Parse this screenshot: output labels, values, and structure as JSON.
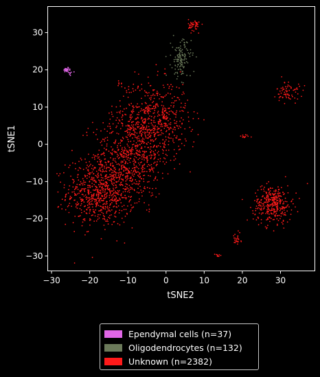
{
  "chart_data": {
    "type": "scatter",
    "xlabel": "tSNE2",
    "ylabel": "tSNE1",
    "xlim": [
      -31,
      39
    ],
    "ylim": [
      -34,
      37
    ],
    "xticks": [
      -30,
      -20,
      -10,
      0,
      10,
      20,
      30
    ],
    "yticks": [
      -30,
      -20,
      -10,
      0,
      10,
      20,
      30
    ],
    "grid": false,
    "legend_position": "bottom-center",
    "series": [
      {
        "name": "Ependymal cells (n=37)",
        "color": "#e066e6",
        "count": 37,
        "clusters": [
          {
            "cx": -26,
            "cy": 20,
            "sx": 0.5,
            "sy": 0.3,
            "n": 28
          },
          {
            "cx": -25,
            "cy": 19,
            "sx": 0.4,
            "sy": 0.6,
            "n": 9
          }
        ]
      },
      {
        "name": "Oligodendrocytes (n=132)",
        "color": "#6b7a5a",
        "count": 132,
        "clusters": [
          {
            "cx": 4,
            "cy": 23,
            "sx": 1.3,
            "sy": 2.6,
            "n": 132
          }
        ]
      },
      {
        "name": "Unknown (n=2382)",
        "color": "#ff1a1a",
        "count": 2382,
        "clusters": [
          {
            "cx": -17,
            "cy": -13,
            "sx": 4.5,
            "sy": 4.5,
            "n": 720
          },
          {
            "cx": -9,
            "cy": -3,
            "sx": 5,
            "sy": 5.5,
            "n": 620
          },
          {
            "cx": -3,
            "cy": 7,
            "sx": 4.5,
            "sy": 5,
            "n": 530
          },
          {
            "cx": 7.5,
            "cy": 32,
            "sx": 0.8,
            "sy": 0.8,
            "n": 45
          },
          {
            "cx": 32,
            "cy": 14,
            "sx": 1.5,
            "sy": 1.5,
            "n": 70
          },
          {
            "cx": 28,
            "cy": -16,
            "sx": 2.5,
            "sy": 2.5,
            "n": 340
          },
          {
            "cx": 18.5,
            "cy": -25.5,
            "sx": 0.6,
            "sy": 0.8,
            "n": 25
          },
          {
            "cx": 20.5,
            "cy": 2,
            "sx": 0.8,
            "sy": 0.3,
            "n": 12
          },
          {
            "cx": 13.5,
            "cy": -30,
            "sx": 0.5,
            "sy": 0.3,
            "n": 10
          },
          {
            "cx": -12,
            "cy": 16,
            "sx": 1.5,
            "sy": 1,
            "n": 10
          }
        ]
      }
    ]
  }
}
